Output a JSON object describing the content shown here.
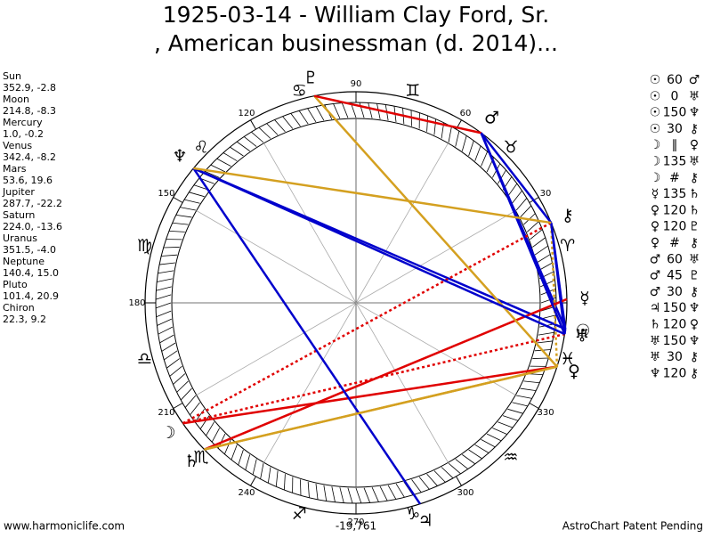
{
  "header": {
    "title_lines": [
      "1925-03-14 - William Clay Ford, Sr.",
      ", American businessman (d. 2014)..."
    ]
  },
  "planets": [
    {
      "name": "Sun",
      "glyph": "☉",
      "coords": "352.9, -2.8"
    },
    {
      "name": "Moon",
      "glyph": "☽",
      "coords": "214.8, -8.3"
    },
    {
      "name": "Mercury",
      "glyph": "☿",
      "coords": "1.0, -0.2"
    },
    {
      "name": "Venus",
      "glyph": "♀",
      "coords": "342.4, -8.2"
    },
    {
      "name": "Mars",
      "glyph": "♂",
      "coords": "53.6, 19.6"
    },
    {
      "name": "Jupiter",
      "glyph": "♃",
      "coords": "287.7, -22.2"
    },
    {
      "name": "Saturn",
      "glyph": "♄",
      "coords": "224.0, -13.6"
    },
    {
      "name": "Uranus",
      "glyph": "♅",
      "coords": "351.5, -4.0"
    },
    {
      "name": "Neptune",
      "glyph": "♆",
      "coords": "140.4, 15.0"
    },
    {
      "name": "Pluto",
      "glyph": "♇",
      "coords": "101.4, 20.9"
    },
    {
      "name": "Chiron",
      "glyph": "⚷",
      "coords": "22.3, 9.2"
    }
  ],
  "aspects": [
    {
      "a": "☉",
      "aspect": "60",
      "b": "♂",
      "color": "#0000cc",
      "dotted": false
    },
    {
      "a": "☉",
      "aspect": "0",
      "b": "♅",
      "color": "#0000cc",
      "dotted": false
    },
    {
      "a": "☉",
      "aspect": "150",
      "b": "♆",
      "color": "#0000cc",
      "dotted": false
    },
    {
      "a": "☉",
      "aspect": "30",
      "b": "⚷",
      "color": "#0000cc",
      "dotted": false
    },
    {
      "a": "☽",
      "aspect": "∥",
      "b": "♀",
      "color": "#e00000",
      "dotted": false
    },
    {
      "a": "☽",
      "aspect": "135",
      "b": "♅",
      "color": "#e00000",
      "dotted": true
    },
    {
      "a": "☽",
      "aspect": "#",
      "b": "⚷",
      "color": "#e00000",
      "dotted": true
    },
    {
      "a": "☿",
      "aspect": "135",
      "b": "♄",
      "color": "#e00000",
      "dotted": false
    },
    {
      "a": "♀",
      "aspect": "120",
      "b": "♄",
      "color": "#d4a020",
      "dotted": false
    },
    {
      "a": "♀",
      "aspect": "120",
      "b": "♇",
      "color": "#d4a020",
      "dotted": false
    },
    {
      "a": "♀",
      "aspect": "#",
      "b": "⚷",
      "color": "#d4a020",
      "dotted": true
    },
    {
      "a": "♂",
      "aspect": "60",
      "b": "♅",
      "color": "#0000cc",
      "dotted": false
    },
    {
      "a": "♂",
      "aspect": "45",
      "b": "♇",
      "color": "#e00000",
      "dotted": false
    },
    {
      "a": "♂",
      "aspect": "30",
      "b": "⚷",
      "color": "#0000cc",
      "dotted": false
    },
    {
      "a": "♃",
      "aspect": "150",
      "b": "♆",
      "color": "#0000cc",
      "dotted": false
    },
    {
      "a": "♄",
      "aspect": "120",
      "b": "♀",
      "color": "#d4a020",
      "dotted": false
    },
    {
      "a": "♅",
      "aspect": "150",
      "b": "♆",
      "color": "#0000cc",
      "dotted": false
    },
    {
      "a": "♅",
      "aspect": "30",
      "b": "⚷",
      "color": "#0000cc",
      "dotted": false
    },
    {
      "a": "♆",
      "aspect": "120",
      "b": "⚷",
      "color": "#d4a020",
      "dotted": false
    }
  ],
  "signs": [
    "♈",
    "♉",
    "♊",
    "♋",
    "♌",
    "♍",
    "♎",
    "♏",
    "♐",
    "♑",
    "♒",
    "♓"
  ],
  "degree_labels": [
    30,
    60,
    90,
    120,
    150,
    180,
    210,
    240,
    270,
    300,
    330
  ],
  "footer": {
    "left": "www.harmoniclife.com",
    "center": "-19,761",
    "right": "AstroChart Patent Pending"
  }
}
